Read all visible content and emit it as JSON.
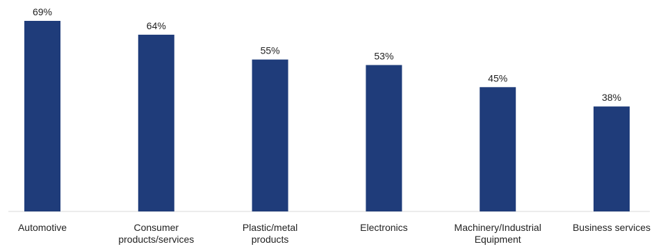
{
  "chart_data": {
    "type": "bar",
    "categories": [
      [
        "Automotive"
      ],
      [
        "Consumer",
        "products/services"
      ],
      [
        "Plastic/metal",
        "products"
      ],
      [
        "Electronics"
      ],
      [
        "Machinery/Industrial",
        "Equipment"
      ],
      [
        "Business services"
      ]
    ],
    "values": [
      69,
      64,
      55,
      53,
      45,
      38
    ],
    "value_labels": [
      "69%",
      "64%",
      "55%",
      "53%",
      "45%",
      "38%"
    ],
    "unit": "%",
    "ylim": [
      0,
      69
    ],
    "grid": false,
    "legend": "none",
    "colors": {
      "bar": "#1f3c7a",
      "axis": "#d9d9d9",
      "text": "#222222"
    }
  }
}
